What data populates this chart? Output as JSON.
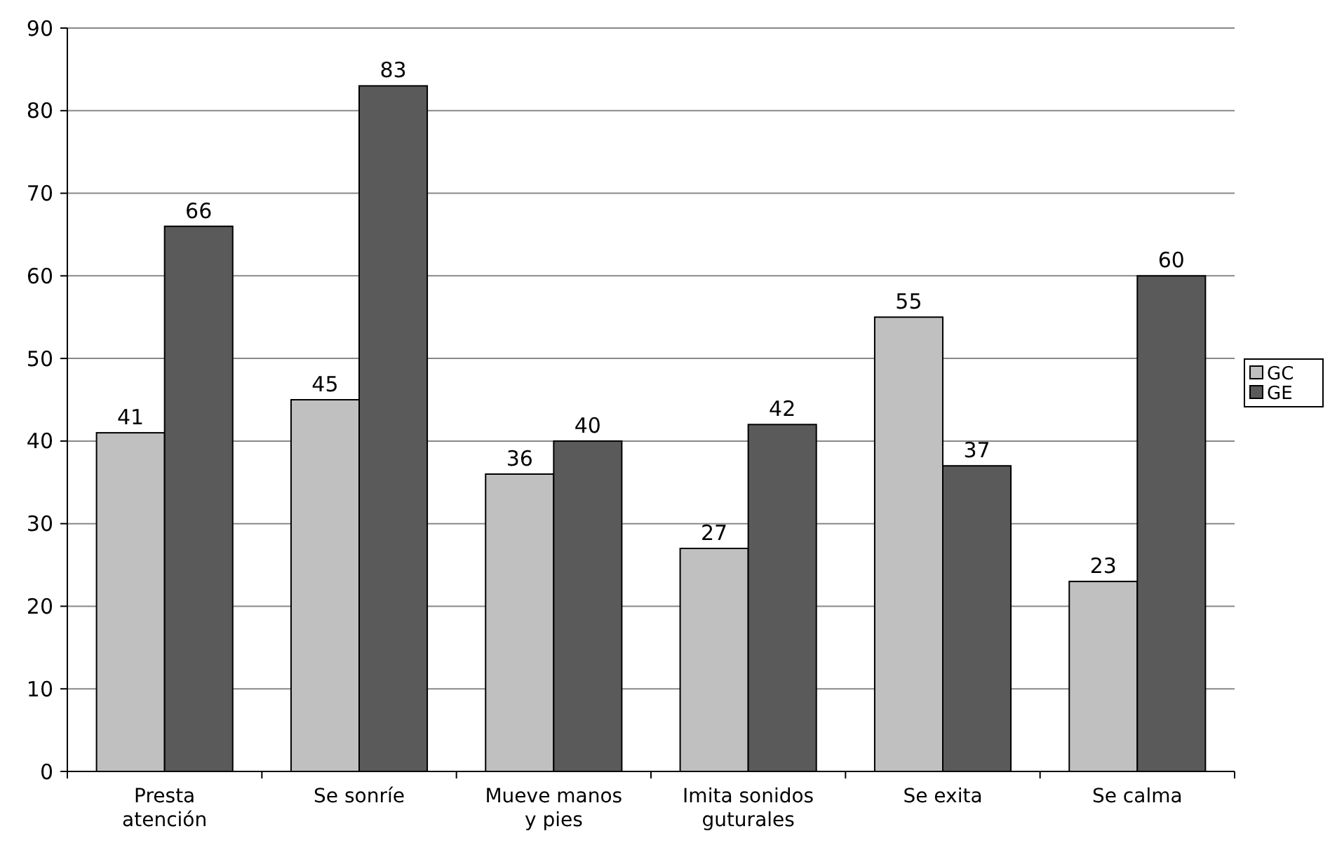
{
  "chart_data": {
    "type": "bar",
    "categories": [
      "Presta\natención",
      "Se sonríe",
      "Mueve manos\ny pies",
      "Imita sonidos\nguturales",
      "Se exita",
      "Se calma"
    ],
    "series": [
      {
        "name": "GC",
        "color": "#c0c0c0",
        "values": [
          41,
          45,
          36,
          27,
          55,
          23
        ]
      },
      {
        "name": "GE",
        "color": "#5a5a5a",
        "values": [
          66,
          83,
          40,
          42,
          37,
          60
        ]
      }
    ],
    "ylim": [
      0,
      90
    ],
    "yticks": [
      0,
      10,
      20,
      30,
      40,
      50,
      60,
      70,
      80,
      90
    ],
    "grid": "y",
    "legend": "right",
    "data_labels": true
  }
}
